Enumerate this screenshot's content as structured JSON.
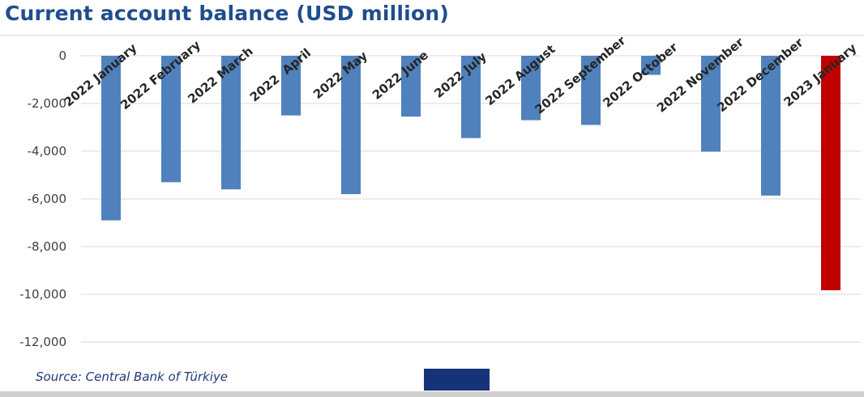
{
  "chart_data": {
    "type": "bar",
    "title": "Current account balance (USD million)",
    "categories": [
      "2022 January",
      "2022 February",
      "2022 March",
      "2022  April",
      "2022 May",
      "2022 June",
      "2022 July",
      "2022 August",
      "2022 September",
      "2022 October",
      "2022 November",
      "2022 December",
      "2023 January"
    ],
    "values": [
      -6900,
      -5300,
      -5600,
      -2500,
      -5800,
      -2550,
      -3450,
      -2700,
      -2900,
      -800,
      -4020,
      -5860,
      -9830
    ],
    "highlight_index": 12,
    "colors": {
      "bar": "#4f81bd",
      "highlight": "#c00000",
      "grid": "#d9d9d9",
      "tick_text": "#404040",
      "category_text": "#262626"
    },
    "ylim": [
      -12000,
      0
    ],
    "yticks": [
      0,
      -2000,
      -4000,
      -6000,
      -8000,
      -10000,
      -12000
    ],
    "ytick_labels": [
      "0",
      "-2,000",
      "-4,000",
      "-6,000",
      "-8,000",
      "-10,000",
      "-12,000"
    ],
    "xlabel": "",
    "ylabel": "",
    "grid": true,
    "legend": "none"
  },
  "source": "Source: Central Bank of Türkiye"
}
